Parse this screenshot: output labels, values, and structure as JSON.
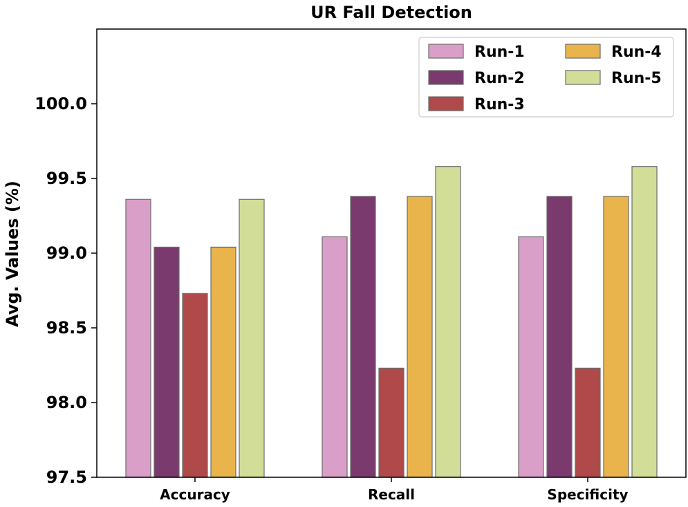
{
  "chart_data": {
    "type": "bar",
    "title": "UR Fall Detection",
    "xlabel": "",
    "ylabel": "Avg. Values (%)",
    "ylim": [
      97.5,
      100.5
    ],
    "yticks": [
      "97.5",
      "98.0",
      "98.5",
      "99.0",
      "99.5",
      "100.0"
    ],
    "categories": [
      "Accuracy",
      "Recall",
      "Specificity"
    ],
    "series": [
      {
        "name": "Run-1",
        "color": "#d99fc9",
        "values": [
          99.36,
          99.11,
          99.11
        ]
      },
      {
        "name": "Run-2",
        "color": "#7a3a6e",
        "values": [
          99.04,
          99.38,
          99.38
        ]
      },
      {
        "name": "Run-3",
        "color": "#b04a4a",
        "values": [
          98.73,
          98.23,
          98.23
        ]
      },
      {
        "name": "Run-4",
        "color": "#e9b44c",
        "values": [
          99.04,
          99.38,
          99.38
        ]
      },
      {
        "name": "Run-5",
        "color": "#d2dd98",
        "values": [
          99.36,
          99.58,
          99.58
        ]
      }
    ],
    "legend_position": "top-right",
    "grid": false
  }
}
